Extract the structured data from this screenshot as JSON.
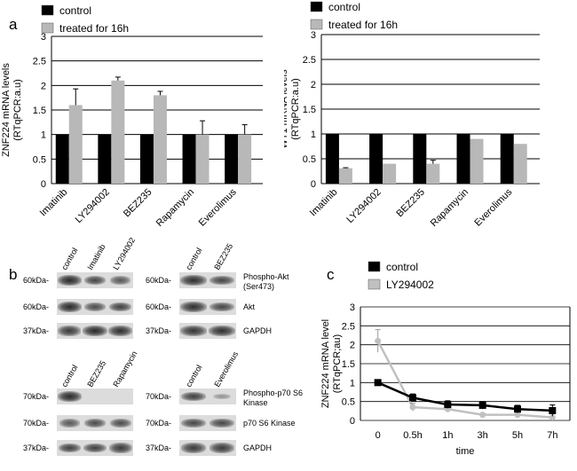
{
  "panels": {
    "a": "a",
    "b": "b",
    "c": "c"
  },
  "chart_data": [
    {
      "type": "bar",
      "categories": [
        "Imatinib",
        "LY294002",
        "BEZ235",
        "Rapamycin",
        "Everolimus"
      ],
      "series": [
        {
          "name": "control",
          "values": [
            1,
            1,
            1,
            1,
            1
          ],
          "errors": [
            0,
            0,
            0,
            0,
            0
          ],
          "color": "#000000"
        },
        {
          "name": "treated for 16h",
          "values": [
            1.6,
            2.1,
            1.8,
            1.0,
            1.0
          ],
          "errors": [
            0.33,
            0.07,
            0.08,
            0.28,
            0.2
          ],
          "color": "#b8b8b8"
        }
      ],
      "ylabel": "ZNF224  mRNA levels\n(RTqPCR:a.u)",
      "yticks": [
        "0",
        "0.5",
        "1",
        "1.5",
        "2",
        "2.5",
        "3"
      ],
      "ylim": [
        0,
        3
      ],
      "grid": true,
      "legend": "top-left"
    },
    {
      "type": "bar",
      "categories": [
        "Imatinib",
        "LY294002",
        "BEZ235",
        "Rapamycin",
        "Everolimus"
      ],
      "series": [
        {
          "name": "control",
          "values": [
            1,
            1,
            1,
            1,
            1
          ],
          "errors": [
            0,
            0,
            0,
            0,
            0
          ],
          "color": "#000000"
        },
        {
          "name": "treated for 16h",
          "values": [
            0.31,
            0.4,
            0.4,
            0.9,
            0.8
          ],
          "errors": [
            0.01,
            0.0,
            0.07,
            0.0,
            0.0
          ],
          "color": "#b8b8b8"
        }
      ],
      "ylabel": "WT1 mRNA levels\n(RTqPCR:a.u)",
      "yticks": [
        "0",
        "0.5",
        "1",
        "1.5",
        "2",
        "2.5",
        "3"
      ],
      "ylim": [
        0,
        3
      ],
      "grid": true,
      "legend": "top-left"
    },
    {
      "type": "line",
      "x": [
        "0",
        "0.5h",
        "1h",
        "3h",
        "5h",
        "7h"
      ],
      "series": [
        {
          "name": "control",
          "values": [
            1.0,
            0.6,
            0.42,
            0.4,
            0.3,
            0.26
          ],
          "errors": [
            0.05,
            0.1,
            0.1,
            0.1,
            0.1,
            0.15
          ],
          "color": "#000000"
        },
        {
          "name": "LY294002",
          "values": [
            2.1,
            0.35,
            0.3,
            0.15,
            0.15,
            0.08
          ],
          "errors": [
            0.3,
            0.1,
            0.08,
            0.0,
            0.0,
            0.0
          ],
          "color": "#c0c0c0"
        }
      ],
      "xlabel": "time",
      "ylabel": "ZNF224 mRNA level\n(RTqPCR;au)",
      "yticks": [
        "0",
        "0.5",
        "1",
        "1.5",
        "2",
        "2.5",
        "3"
      ],
      "ylim": [
        0,
        3
      ],
      "grid": true,
      "legend": "top-left"
    }
  ],
  "blots": {
    "top_left": {
      "lanes": [
        "control",
        "Imatinib",
        "LY294002"
      ],
      "mw": [
        "60kDa-",
        "60kDa-",
        "37kDa-"
      ]
    },
    "top_right": {
      "lanes": [
        "control",
        "BEZ235"
      ],
      "mw": [
        "60kDa-",
        "60kDa-",
        "37kDa-"
      ],
      "labels": [
        "Phospho-Akt\n(Ser473)",
        "Akt",
        "GAPDH"
      ]
    },
    "bottom_left": {
      "lanes": [
        "control",
        "BEZ235",
        "Rapamycin"
      ],
      "mw": [
        "70kDa-",
        "70kDa-",
        "37kDa-"
      ]
    },
    "bottom_right": {
      "lanes": [
        "control",
        "Everolimus"
      ],
      "mw": [
        "70kDa-",
        "70kDa-",
        "37kDa-"
      ],
      "labels": [
        "Phospho-p70 S6\nKinase",
        "p70 S6 Kinase",
        "GAPDH"
      ]
    }
  }
}
